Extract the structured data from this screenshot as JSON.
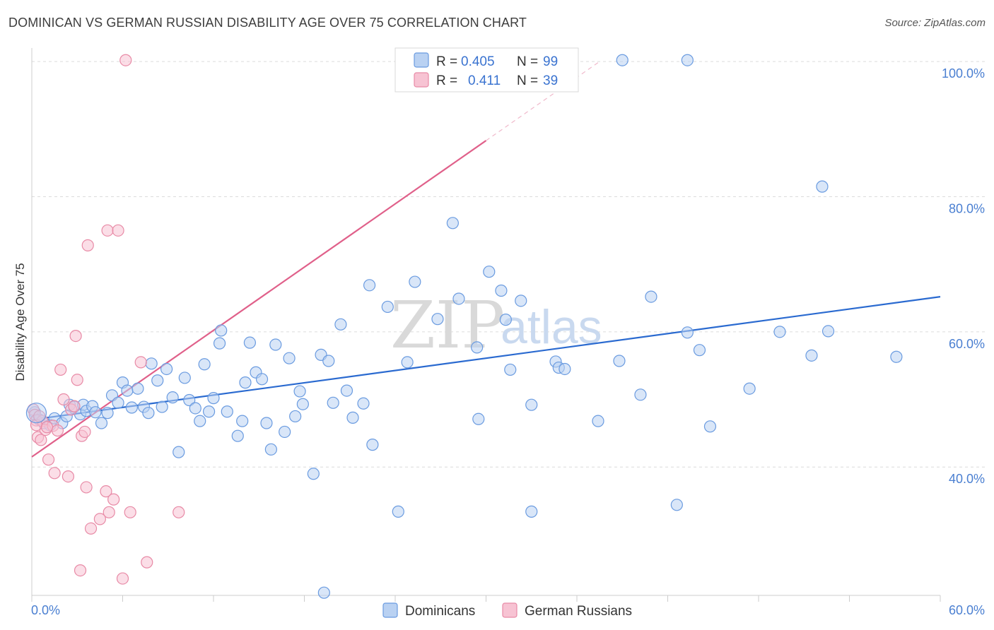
{
  "title": "DOMINICAN VS GERMAN RUSSIAN DISABILITY AGE OVER 75 CORRELATION CHART",
  "source": "Source: ZipAtlas.com",
  "watermark": {
    "zip": "ZIP",
    "atlas": "atlas"
  },
  "chart_data": {
    "type": "scatter",
    "title": "DOMINICAN VS GERMAN RUSSIAN DISABILITY AGE OVER 75 CORRELATION CHART",
    "xlabel": "",
    "ylabel": "Disability Age Over 75",
    "xlim": [
      0,
      60
    ],
    "ylim": [
      21,
      102
    ],
    "x_tick_labels": {
      "min": "0.0%",
      "max": "60.0%"
    },
    "y_ticks": [
      {
        "value": 40,
        "label": "40.0%"
      },
      {
        "value": 60,
        "label": "60.0%"
      },
      {
        "value": 80,
        "label": "80.0%"
      },
      {
        "value": 100,
        "label": "100.0%"
      }
    ],
    "grid": true,
    "legend_placement": "top-center",
    "series": [
      {
        "name": "Dominicans",
        "color": "#6a9be0",
        "fill": "#b9d1f2",
        "r_label": "R =",
        "r_value": "0.405",
        "n_label": "N =",
        "n_value": "99",
        "trend": {
          "x": [
            0,
            60
          ],
          "y": [
            47.0,
            65.2
          ],
          "color": "#2a6ad0"
        },
        "points": [
          {
            "x": 0.2,
            "y": 48.1
          },
          {
            "x": 0.5,
            "y": 47.0
          },
          {
            "x": 0.8,
            "y": 46.5
          },
          {
            "x": 1.2,
            "y": 46.2
          },
          {
            "x": 1.5,
            "y": 47.2
          },
          {
            "x": 2.0,
            "y": 46.5
          },
          {
            "x": 2.3,
            "y": 47.5
          },
          {
            "x": 2.5,
            "y": 49.2
          },
          {
            "x": 2.8,
            "y": 48.9
          },
          {
            "x": 3.2,
            "y": 47.8
          },
          {
            "x": 3.4,
            "y": 49.2
          },
          {
            "x": 3.6,
            "y": 48.3
          },
          {
            "x": 4.0,
            "y": 49.0
          },
          {
            "x": 4.2,
            "y": 48.1
          },
          {
            "x": 4.6,
            "y": 46.5
          },
          {
            "x": 5.0,
            "y": 48.0
          },
          {
            "x": 5.3,
            "y": 50.6
          },
          {
            "x": 5.7,
            "y": 49.5
          },
          {
            "x": 6.0,
            "y": 52.5
          },
          {
            "x": 6.3,
            "y": 51.3
          },
          {
            "x": 6.6,
            "y": 48.8
          },
          {
            "x": 7.0,
            "y": 51.6
          },
          {
            "x": 7.4,
            "y": 48.9
          },
          {
            "x": 7.7,
            "y": 48.0
          },
          {
            "x": 7.9,
            "y": 55.3
          },
          {
            "x": 8.3,
            "y": 52.8
          },
          {
            "x": 8.6,
            "y": 48.9
          },
          {
            "x": 8.9,
            "y": 54.5
          },
          {
            "x": 9.3,
            "y": 50.3
          },
          {
            "x": 9.7,
            "y": 42.2
          },
          {
            "x": 10.1,
            "y": 53.2
          },
          {
            "x": 10.4,
            "y": 49.9
          },
          {
            "x": 10.8,
            "y": 48.7
          },
          {
            "x": 11.1,
            "y": 46.8
          },
          {
            "x": 11.4,
            "y": 55.2
          },
          {
            "x": 11.7,
            "y": 48.2
          },
          {
            "x": 12.0,
            "y": 50.2
          },
          {
            "x": 12.4,
            "y": 58.3
          },
          {
            "x": 12.5,
            "y": 60.2
          },
          {
            "x": 12.9,
            "y": 48.2
          },
          {
            "x": 13.6,
            "y": 44.6
          },
          {
            "x": 13.9,
            "y": 46.8
          },
          {
            "x": 14.1,
            "y": 52.5
          },
          {
            "x": 14.4,
            "y": 58.4
          },
          {
            "x": 14.8,
            "y": 54.0
          },
          {
            "x": 15.2,
            "y": 53.0
          },
          {
            "x": 15.5,
            "y": 46.5
          },
          {
            "x": 15.8,
            "y": 42.6
          },
          {
            "x": 16.1,
            "y": 58.1
          },
          {
            "x": 16.7,
            "y": 45.2
          },
          {
            "x": 17.0,
            "y": 56.1
          },
          {
            "x": 17.4,
            "y": 47.5
          },
          {
            "x": 17.7,
            "y": 51.2
          },
          {
            "x": 17.9,
            "y": 49.3
          },
          {
            "x": 18.6,
            "y": 39.0
          },
          {
            "x": 19.1,
            "y": 56.6
          },
          {
            "x": 19.3,
            "y": 21.4
          },
          {
            "x": 19.6,
            "y": 55.7
          },
          {
            "x": 19.9,
            "y": 49.5
          },
          {
            "x": 20.4,
            "y": 61.1
          },
          {
            "x": 20.8,
            "y": 51.3
          },
          {
            "x": 21.2,
            "y": 47.3
          },
          {
            "x": 21.9,
            "y": 49.4
          },
          {
            "x": 22.3,
            "y": 66.9
          },
          {
            "x": 22.5,
            "y": 43.3
          },
          {
            "x": 23.5,
            "y": 63.7
          },
          {
            "x": 24.2,
            "y": 33.4
          },
          {
            "x": 24.8,
            "y": 55.5
          },
          {
            "x": 25.3,
            "y": 67.4
          },
          {
            "x": 26.8,
            "y": 61.9
          },
          {
            "x": 27.8,
            "y": 76.1
          },
          {
            "x": 28.2,
            "y": 64.9
          },
          {
            "x": 29.4,
            "y": 57.7
          },
          {
            "x": 29.5,
            "y": 47.1
          },
          {
            "x": 30.2,
            "y": 68.9
          },
          {
            "x": 31.0,
            "y": 66.1
          },
          {
            "x": 31.3,
            "y": 61.8
          },
          {
            "x": 31.6,
            "y": 54.4
          },
          {
            "x": 32.3,
            "y": 64.6
          },
          {
            "x": 33.0,
            "y": 49.2
          },
          {
            "x": 33.0,
            "y": 33.4
          },
          {
            "x": 34.6,
            "y": 55.6
          },
          {
            "x": 34.8,
            "y": 54.7
          },
          {
            "x": 35.2,
            "y": 54.5
          },
          {
            "x": 37.4,
            "y": 46.8
          },
          {
            "x": 38.8,
            "y": 55.7
          },
          {
            "x": 39.0,
            "y": 100.2
          },
          {
            "x": 40.2,
            "y": 50.7
          },
          {
            "x": 40.9,
            "y": 65.2
          },
          {
            "x": 42.6,
            "y": 34.4
          },
          {
            "x": 43.3,
            "y": 100.2
          },
          {
            "x": 43.3,
            "y": 59.9
          },
          {
            "x": 44.1,
            "y": 57.3
          },
          {
            "x": 44.8,
            "y": 46.0
          },
          {
            "x": 47.4,
            "y": 51.6
          },
          {
            "x": 49.4,
            "y": 60.0
          },
          {
            "x": 51.5,
            "y": 56.5
          },
          {
            "x": 52.2,
            "y": 81.5
          },
          {
            "x": 52.6,
            "y": 60.1
          },
          {
            "x": 57.1,
            "y": 56.3
          }
        ]
      },
      {
        "name": "German Russians",
        "color": "#e88aa6",
        "fill": "#f7c3d3",
        "r_label": "R =",
        "r_value": "0.411",
        "n_label": "N =",
        "n_value": "39",
        "trend": {
          "x": [
            0,
            30
          ],
          "y": [
            41.5,
            88.3
          ],
          "color": "#e0608a",
          "dashed_to": {
            "x": 37.5,
            "y": 100.0
          }
        },
        "points": [
          {
            "x": 0.1,
            "y": 48.5
          },
          {
            "x": 0.2,
            "y": 47.7
          },
          {
            "x": 0.3,
            "y": 46.9
          },
          {
            "x": 0.4,
            "y": 44.4
          },
          {
            "x": 0.6,
            "y": 44.0
          },
          {
            "x": 0.7,
            "y": 46.8
          },
          {
            "x": 0.9,
            "y": 45.5
          },
          {
            "x": 1.1,
            "y": 41.1
          },
          {
            "x": 1.4,
            "y": 46.1
          },
          {
            "x": 1.5,
            "y": 39.1
          },
          {
            "x": 1.7,
            "y": 45.4
          },
          {
            "x": 1.9,
            "y": 54.4
          },
          {
            "x": 2.1,
            "y": 50.0
          },
          {
            "x": 2.4,
            "y": 38.6
          },
          {
            "x": 2.6,
            "y": 48.5
          },
          {
            "x": 2.9,
            "y": 59.4
          },
          {
            "x": 3.0,
            "y": 52.9
          },
          {
            "x": 3.3,
            "y": 44.6
          },
          {
            "x": 3.5,
            "y": 45.2
          },
          {
            "x": 3.6,
            "y": 37.0
          },
          {
            "x": 3.7,
            "y": 72.8
          },
          {
            "x": 3.9,
            "y": 30.9
          },
          {
            "x": 3.2,
            "y": 24.7
          },
          {
            "x": 4.5,
            "y": 32.3
          },
          {
            "x": 4.9,
            "y": 36.4
          },
          {
            "x": 5.0,
            "y": 75.0
          },
          {
            "x": 5.1,
            "y": 33.3
          },
          {
            "x": 5.4,
            "y": 35.2
          },
          {
            "x": 5.7,
            "y": 75.0
          },
          {
            "x": 6.0,
            "y": 23.5
          },
          {
            "x": 6.2,
            "y": 100.2
          },
          {
            "x": 6.5,
            "y": 33.3
          },
          {
            "x": 7.2,
            "y": 55.5
          },
          {
            "x": 7.6,
            "y": 25.9
          },
          {
            "x": 9.7,
            "y": 33.3
          },
          {
            "x": 0.3,
            "y": 46.2
          },
          {
            "x": 1.0,
            "y": 45.9
          },
          {
            "x": 2.8,
            "y": 49.0
          },
          {
            "x": 0.5,
            "y": 47.5
          }
        ]
      }
    ]
  }
}
